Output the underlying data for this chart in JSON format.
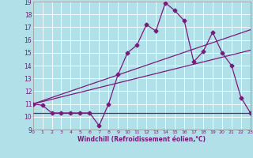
{
  "xlabel": "Windchill (Refroidissement éolien,°C)",
  "background_color": "#b2e0e8",
  "grid_color": "#ffffff",
  "line_color": "#7b1a7b",
  "xmin": 0,
  "xmax": 23,
  "ymin": 9,
  "ymax": 19,
  "line1_x": [
    0,
    1,
    2,
    3,
    4,
    5,
    6,
    7,
    8,
    9,
    10,
    11,
    12,
    13,
    14,
    15,
    16,
    17,
    18,
    19,
    20,
    21,
    22,
    23
  ],
  "line1_y": [
    11.0,
    10.9,
    10.3,
    10.3,
    10.3,
    10.3,
    10.3,
    9.3,
    11.0,
    13.3,
    15.0,
    15.6,
    17.2,
    16.7,
    18.9,
    18.3,
    17.5,
    14.3,
    15.1,
    16.6,
    15.0,
    14.0,
    11.5,
    10.3
  ],
  "line2_x": [
    0,
    23
  ],
  "line2_y": [
    10.3,
    10.3
  ],
  "line3_x": [
    0,
    23
  ],
  "line3_y": [
    11.0,
    15.2
  ],
  "line4_x": [
    0,
    23
  ],
  "line4_y": [
    11.0,
    16.8
  ],
  "marker": "D",
  "markersize": 2.5,
  "linewidth": 0.9
}
